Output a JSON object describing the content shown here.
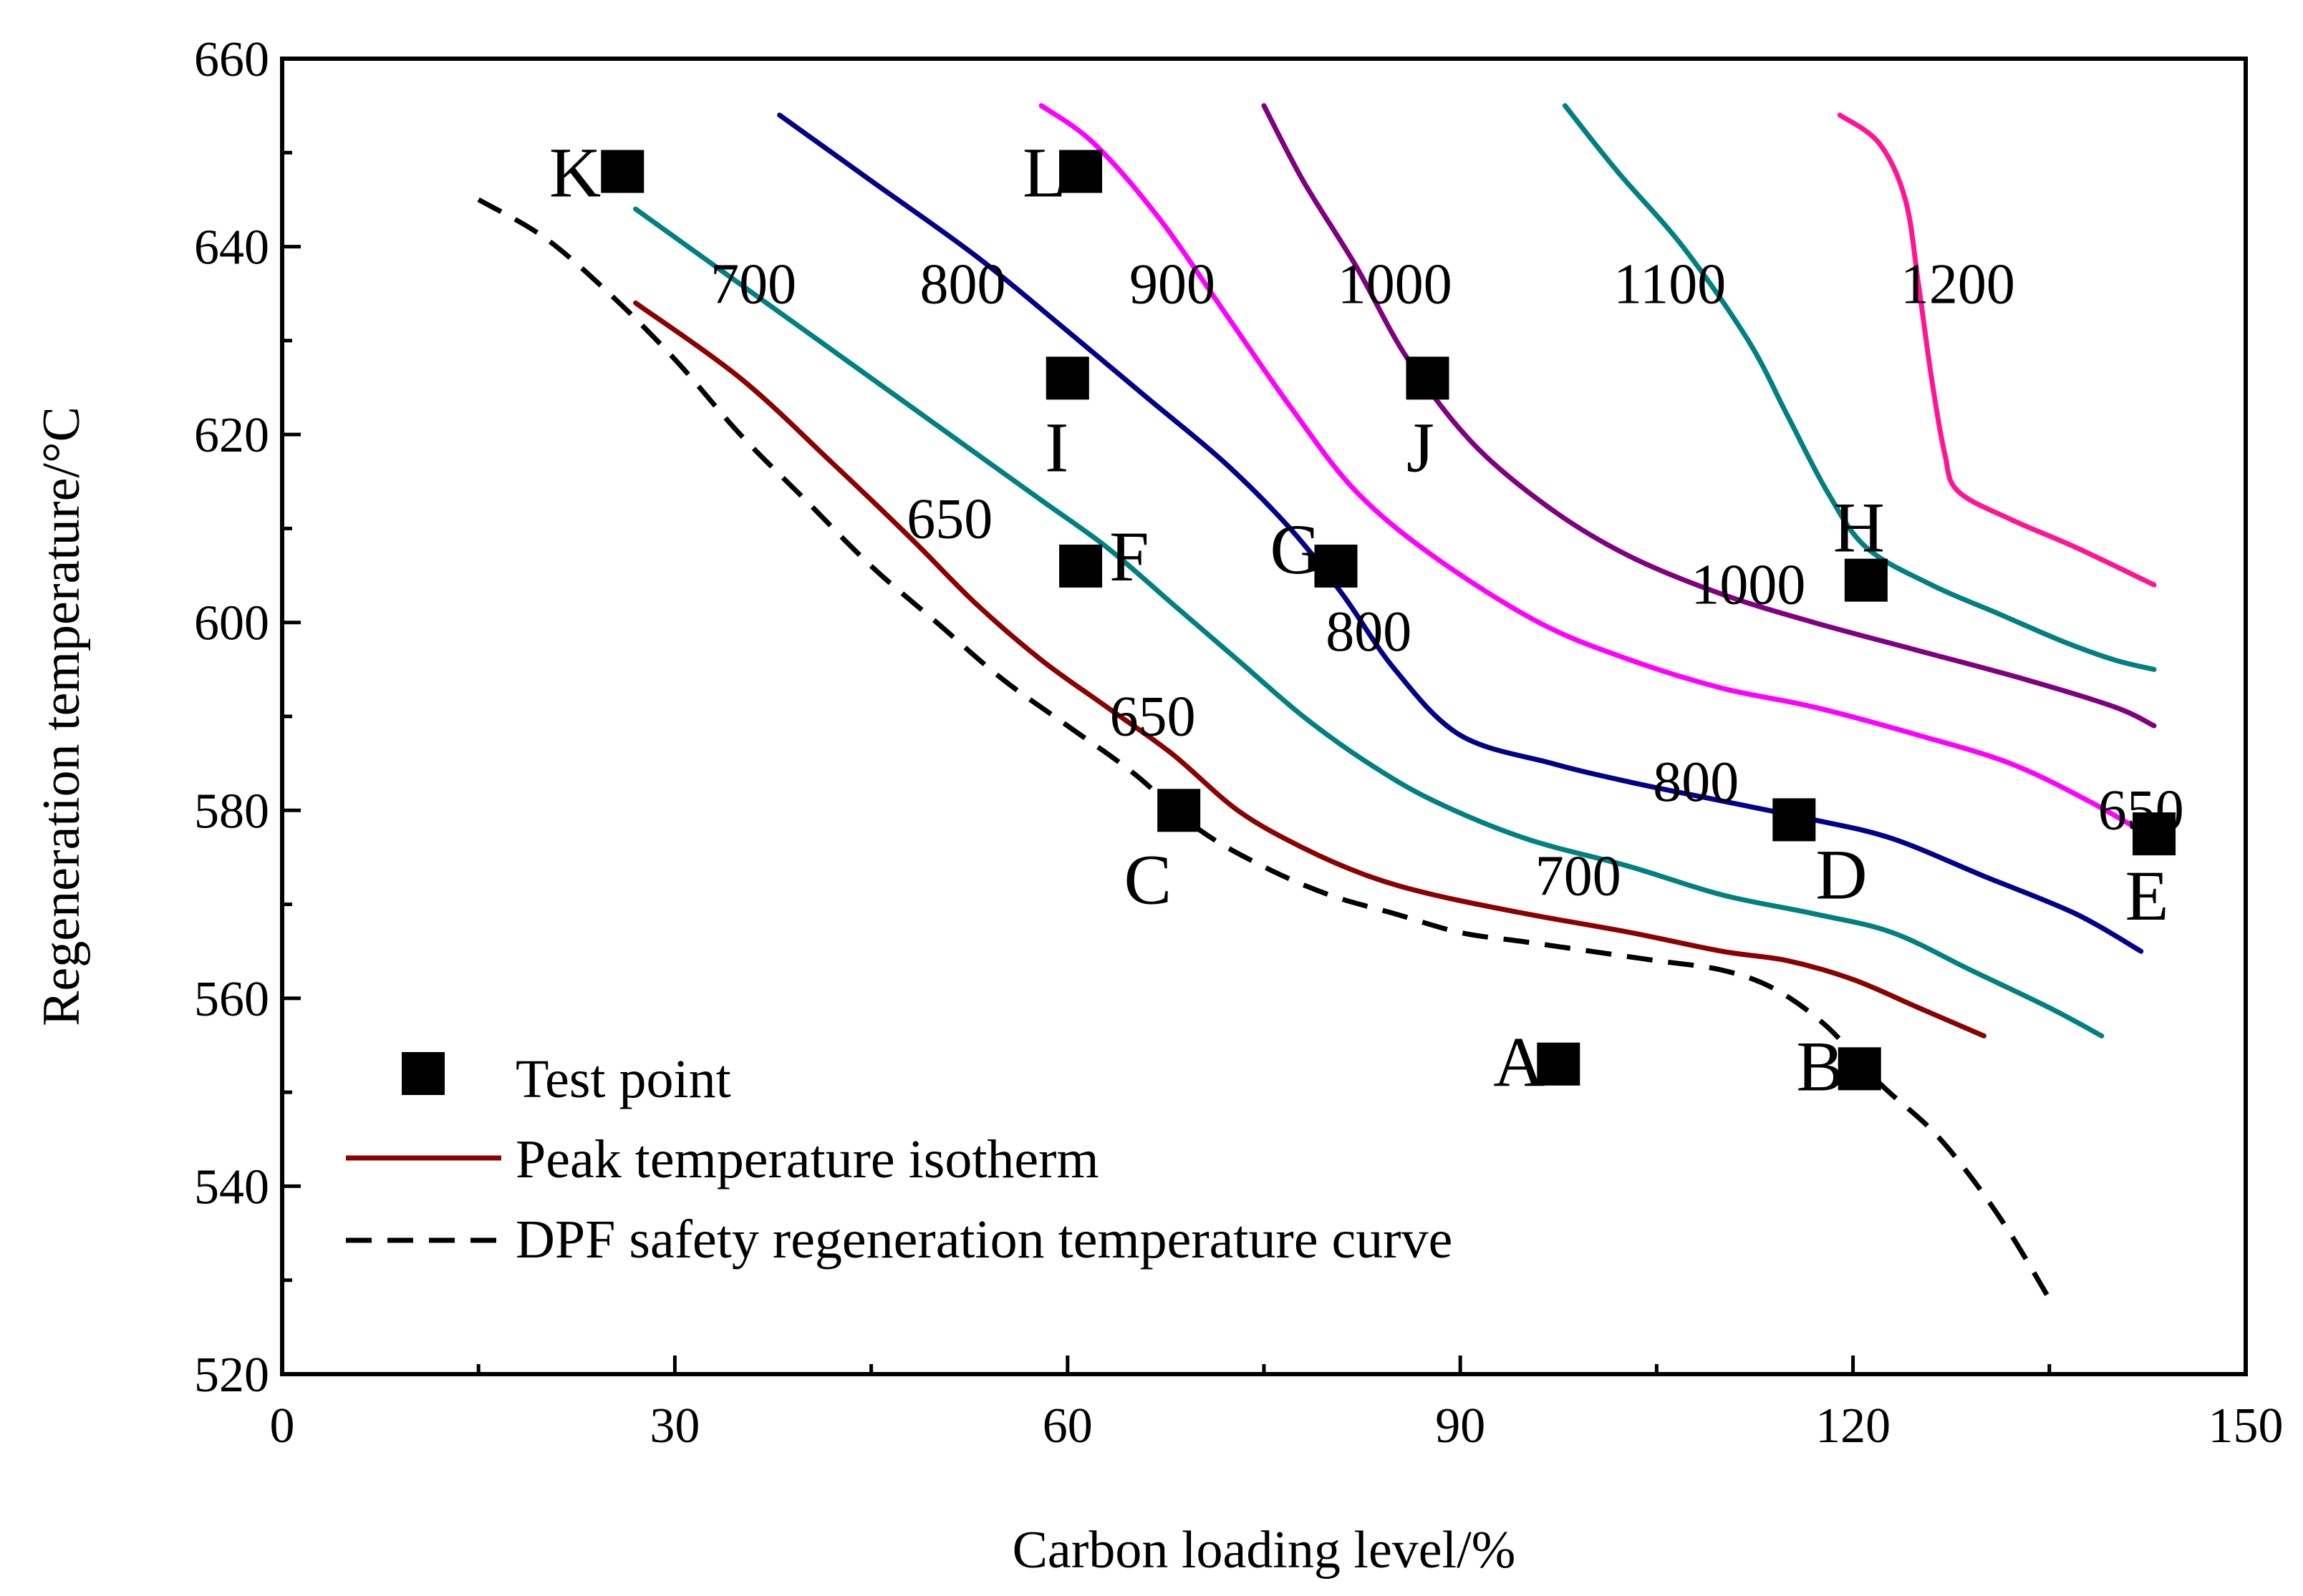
{
  "chart_data": {
    "type": "line",
    "title": "",
    "xlabel": "Carbon loading level/%",
    "ylabel": "Regeneration temperature/°C",
    "xlim": [
      0,
      150
    ],
    "ylim": [
      520,
      660
    ],
    "xticks": [
      "0",
      "30",
      "60",
      "90",
      "120",
      "150"
    ],
    "yticks": [
      "520",
      "540",
      "560",
      "580",
      "600",
      "620",
      "640",
      "660"
    ],
    "legend": {
      "position": "bottom-left",
      "entries": [
        {
          "label": "Test point",
          "marker": "square"
        },
        {
          "label": "Peak temperature isotherm",
          "marker": "line"
        },
        {
          "label": "DPF safety regeneration temperature curve",
          "marker": "dashed"
        }
      ]
    },
    "isotherms": [
      {
        "name": "650",
        "color": "#8b0000",
        "points": [
          [
            27,
            634
          ],
          [
            35,
            626
          ],
          [
            42,
            617
          ],
          [
            48,
            609
          ],
          [
            53,
            602
          ],
          [
            58,
            596
          ],
          [
            63,
            591
          ],
          [
            68,
            586
          ],
          [
            73,
            580
          ],
          [
            78,
            576
          ],
          [
            83,
            573
          ],
          [
            88,
            571
          ],
          [
            95,
            569
          ],
          [
            103,
            567
          ],
          [
            110,
            565
          ],
          [
            115,
            564
          ],
          [
            120,
            562
          ],
          [
            125,
            559
          ],
          [
            130,
            556
          ]
        ]
      },
      {
        "name": "700",
        "color": "#008080",
        "points": [
          [
            27,
            644
          ],
          [
            33,
            638
          ],
          [
            40,
            631
          ],
          [
            47,
            624
          ],
          [
            53,
            618
          ],
          [
            58,
            613
          ],
          [
            63,
            608
          ],
          [
            68,
            602
          ],
          [
            73,
            596
          ],
          [
            78,
            590
          ],
          [
            83,
            585
          ],
          [
            88,
            581
          ],
          [
            95,
            577
          ],
          [
            103,
            574
          ],
          [
            110,
            571
          ],
          [
            117,
            569
          ],
          [
            123,
            567
          ],
          [
            129,
            563
          ],
          [
            135,
            559
          ],
          [
            139,
            556
          ]
        ]
      },
      {
        "name": "800",
        "color": "#00008b",
        "points": [
          [
            38,
            654
          ],
          [
            45,
            647
          ],
          [
            53,
            639
          ],
          [
            60,
            631
          ],
          [
            66,
            624
          ],
          [
            72,
            617
          ],
          [
            77,
            610
          ],
          [
            81,
            603
          ],
          [
            85,
            595
          ],
          [
            90,
            588
          ],
          [
            97,
            585
          ],
          [
            103,
            583
          ],
          [
            110,
            581
          ],
          [
            117,
            579
          ],
          [
            123,
            577
          ],
          [
            130,
            573
          ],
          [
            137,
            569
          ],
          [
            142,
            565
          ]
        ]
      },
      {
        "name": "900",
        "color": "#ff00ff",
        "points": [
          [
            58,
            655
          ],
          [
            62,
            651
          ],
          [
            67,
            643
          ],
          [
            72,
            633
          ],
          [
            77,
            623
          ],
          [
            82,
            614
          ],
          [
            88,
            607
          ],
          [
            96,
            600
          ],
          [
            103,
            596
          ],
          [
            110,
            593
          ],
          [
            117,
            591
          ],
          [
            125,
            588
          ],
          [
            132,
            585
          ],
          [
            138,
            581
          ],
          [
            143,
            577
          ]
        ]
      },
      {
        "name": "1000",
        "color": "#800080",
        "points": [
          [
            75,
            655
          ],
          [
            78,
            647
          ],
          [
            82,
            638
          ],
          [
            86,
            628
          ],
          [
            91,
            619
          ],
          [
            97,
            612
          ],
          [
            103,
            607
          ],
          [
            110,
            603
          ],
          [
            117,
            600
          ],
          [
            125,
            597
          ],
          [
            133,
            594
          ],
          [
            140,
            591
          ],
          [
            143,
            589
          ]
        ]
      },
      {
        "name": "1100",
        "color": "#008080",
        "points": [
          [
            98,
            655
          ],
          [
            102,
            648
          ],
          [
            107,
            640
          ],
          [
            112,
            630
          ],
          [
            115,
            622
          ],
          [
            118,
            614
          ],
          [
            121,
            608
          ],
          [
            126,
            604
          ],
          [
            131,
            601
          ],
          [
            136,
            598
          ],
          [
            140,
            596
          ],
          [
            143,
            595
          ]
        ]
      },
      {
        "name": "1200",
        "color": "#ff1493",
        "points": [
          [
            119,
            654
          ],
          [
            122,
            651
          ],
          [
            124,
            645
          ],
          [
            125,
            636
          ],
          [
            126,
            626
          ],
          [
            127,
            618
          ],
          [
            128,
            614
          ],
          [
            132,
            611
          ],
          [
            137,
            608
          ],
          [
            143,
            604
          ]
        ]
      }
    ],
    "safety_curve": {
      "name": "DPF safety regeneration temperature curve",
      "points": [
        [
          15,
          645
        ],
        [
          20,
          641
        ],
        [
          25,
          635
        ],
        [
          30,
          628
        ],
        [
          35,
          620
        ],
        [
          40,
          613
        ],
        [
          45,
          606
        ],
        [
          50,
          600
        ],
        [
          55,
          594
        ],
        [
          60,
          589
        ],
        [
          65,
          584
        ],
        [
          70,
          578
        ],
        [
          75,
          574
        ],
        [
          80,
          571
        ],
        [
          85,
          569
        ],
        [
          90,
          567
        ],
        [
          95,
          566
        ],
        [
          100,
          565
        ],
        [
          105,
          564
        ],
        [
          110,
          563
        ],
        [
          114,
          561
        ],
        [
          118,
          557
        ],
        [
          122,
          551
        ],
        [
          126,
          546
        ],
        [
          129,
          541
        ],
        [
          132,
          535
        ],
        [
          135,
          528
        ]
      ]
    },
    "test_points": [
      {
        "label": "A",
        "x": 97.5,
        "y": 553
      },
      {
        "label": "B",
        "x": 120.5,
        "y": 552.5
      },
      {
        "label": "C",
        "x": 68.5,
        "y": 580
      },
      {
        "label": "D",
        "x": 115.5,
        "y": 579
      },
      {
        "label": "E",
        "x": 143,
        "y": 577.5
      },
      {
        "label": "F",
        "x": 61,
        "y": 606
      },
      {
        "label": "G",
        "x": 80.5,
        "y": 606
      },
      {
        "label": "H",
        "x": 121,
        "y": 604.5
      },
      {
        "label": "I",
        "x": 60,
        "y": 626
      },
      {
        "label": "J",
        "x": 87.5,
        "y": 626
      },
      {
        "label": "K",
        "x": 26,
        "y": 648
      },
      {
        "label": "L",
        "x": 61,
        "y": 648
      }
    ],
    "annotations": [
      {
        "text": "700",
        "x": 36,
        "y": 634
      },
      {
        "text": "800",
        "x": 52,
        "y": 634
      },
      {
        "text": "900",
        "x": 68,
        "y": 634
      },
      {
        "text": "1000",
        "x": 85,
        "y": 634
      },
      {
        "text": "1100",
        "x": 106,
        "y": 634
      },
      {
        "text": "1200",
        "x": 128,
        "y": 634
      },
      {
        "text": "650",
        "x": 51,
        "y": 609
      },
      {
        "text": "650",
        "x": 66.5,
        "y": 588
      },
      {
        "text": "800",
        "x": 83,
        "y": 597
      },
      {
        "text": "1000",
        "x": 112,
        "y": 602
      },
      {
        "text": "800",
        "x": 108,
        "y": 581
      },
      {
        "text": "700",
        "x": 99,
        "y": 571
      },
      {
        "text": "650",
        "x": 142,
        "y": 578
      }
    ]
  }
}
